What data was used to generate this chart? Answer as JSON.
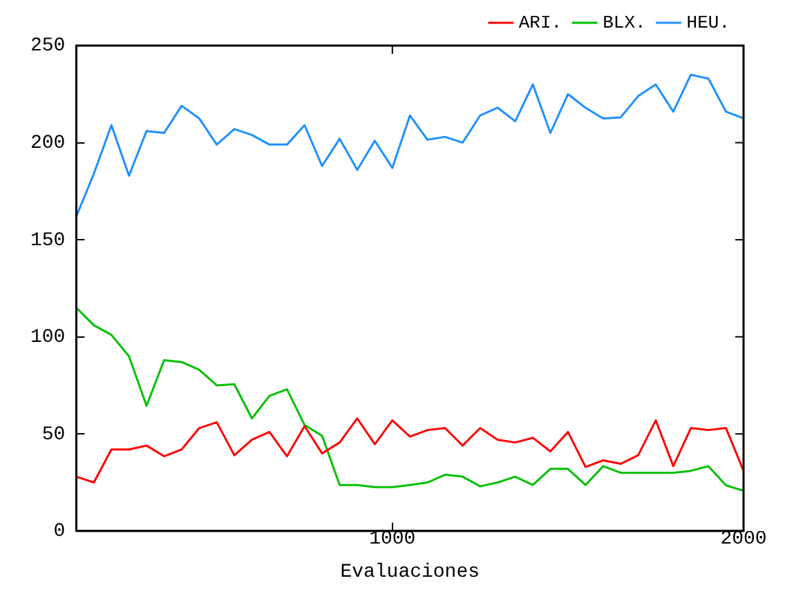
{
  "chart_data": {
    "type": "line",
    "xlabel": "Evaluaciones",
    "x": [
      100,
      150,
      200,
      250,
      300,
      350,
      400,
      450,
      500,
      550,
      600,
      650,
      700,
      750,
      800,
      850,
      900,
      950,
      1000,
      1050,
      1100,
      1150,
      1200,
      1250,
      1300,
      1350,
      1400,
      1450,
      1500,
      1550,
      1600,
      1650,
      1700,
      1750,
      1800,
      1850,
      1900,
      1950,
      2000
    ],
    "series": [
      {
        "name": "ARI.",
        "color": "#ff0000",
        "values": [
          28,
          25,
          42,
          42,
          44,
          38.5,
          42,
          53,
          56,
          39,
          47,
          51,
          38.5,
          54,
          40,
          45.6,
          58,
          44.7,
          57,
          48.6,
          52,
          53,
          44,
          53,
          47,
          45.6,
          48,
          41,
          51,
          33,
          36.4,
          34.6,
          39,
          57,
          33.4,
          53,
          52,
          53,
          31
        ]
      },
      {
        "name": "BLX.",
        "color": "#00c000",
        "values": [
          115,
          106,
          101,
          90,
          64.5,
          88,
          87,
          83,
          75,
          75.6,
          58,
          69.6,
          73,
          54.6,
          49,
          23.7,
          23.7,
          22.6,
          22.6,
          23.7,
          25,
          29,
          28,
          23,
          25,
          28,
          23.7,
          32,
          32,
          23.7,
          33.4,
          30,
          30,
          30,
          30,
          31,
          33.4,
          23.5,
          20.7
        ]
      },
      {
        "name": "HEU.",
        "color": "#1e90ff",
        "values": [
          162,
          184,
          209,
          183,
          206,
          205,
          219,
          212.5,
          199,
          207,
          204,
          199,
          199,
          209,
          188,
          202,
          186,
          201,
          187,
          214,
          201.5,
          203,
          200,
          214,
          218,
          211,
          230,
          205,
          225,
          218,
          212.5,
          213,
          224,
          230,
          216,
          235,
          233,
          216,
          212.5
        ]
      }
    ],
    "xlim": [
      100,
      2000
    ],
    "xticks": [
      1000,
      2000
    ],
    "ylim": [
      0,
      250
    ],
    "yticks": [
      0,
      50,
      100,
      150,
      200,
      250
    ],
    "grid": false,
    "legend": "top right",
    "marker": "none",
    "line_style": "solid"
  }
}
